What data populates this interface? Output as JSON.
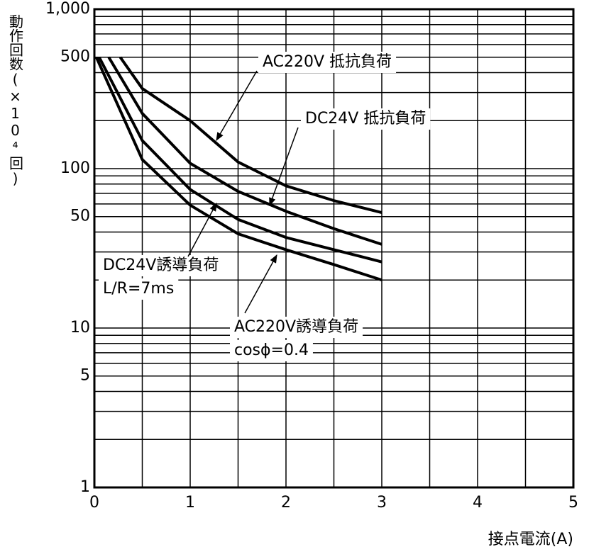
{
  "chart_data": {
    "type": "line",
    "ylabel": "動作回数(×10⁴回)",
    "xlabel": "接点電流(A)",
    "log_y": true,
    "grid": true,
    "color": "#000000",
    "xlim": [
      0,
      5
    ],
    "xticks": [
      0,
      1,
      2,
      3,
      4,
      5
    ],
    "ylim": [
      1,
      1000
    ],
    "yticks": [
      1,
      5,
      10,
      50,
      100,
      500,
      {
        "value": 1000,
        "label": "1,000"
      }
    ],
    "series": [
      {
        "name": "AC220V 抵抗負荷",
        "x": [
          0.27,
          0.5,
          1,
          1.5,
          2,
          2.5,
          3
        ],
        "values": [
          500,
          318,
          200,
          110,
          78,
          63,
          53
        ]
      },
      {
        "name": "DC24V 抵抗負荷",
        "x": [
          0.15,
          0.5,
          1,
          1.5,
          2,
          2.5,
          3
        ],
        "values": [
          500,
          222,
          108,
          72,
          54,
          42,
          33.5
        ]
      },
      {
        "name": "DC24V誘導負荷 L/R=7ms",
        "x": [
          0.05,
          0.5,
          1,
          1.5,
          2,
          2.5,
          3
        ],
        "values": [
          500,
          150,
          74,
          48,
          37,
          31,
          26
        ]
      },
      {
        "name": "AC220V誘導負荷 cosϕ=0.4",
        "x": [
          0.02,
          0.5,
          1,
          1.5,
          2,
          2.5,
          3
        ],
        "values": [
          500,
          114,
          59,
          39,
          31,
          25,
          20
        ]
      }
    ],
    "annotations": [
      [
        "AC220V 抵抗負荷"
      ],
      [
        "DC24V 抵抗負荷"
      ],
      [
        "DC24V誘導負荷",
        "L/R=7ms"
      ],
      [
        "AC220V誘導負荷",
        "cosϕ=0.4"
      ]
    ]
  }
}
